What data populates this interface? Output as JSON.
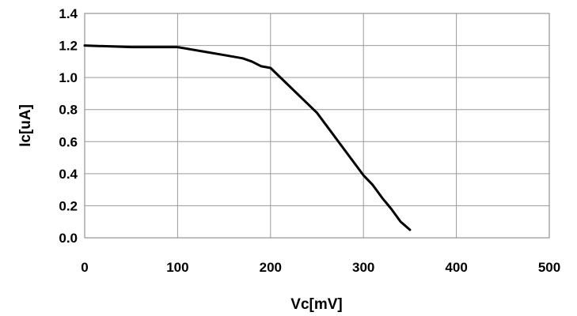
{
  "chart_data": {
    "type": "line",
    "title": "",
    "xlabel": "Vc[mV]",
    "ylabel": "Ic[uA]",
    "xlim": [
      0,
      500
    ],
    "ylim": [
      0,
      1.4
    ],
    "x_ticks": [
      "0",
      "100",
      "200",
      "300",
      "400",
      "500"
    ],
    "y_ticks": [
      "0.0",
      "0.2",
      "0.4",
      "0.6",
      "0.8",
      "1.0",
      "1.2",
      "1.4"
    ],
    "grid": true,
    "legend": "none",
    "series": [
      {
        "color": "#000000",
        "x": [
          0,
          50,
          100,
          150,
          170,
          180,
          190,
          200,
          250,
          300,
          310,
          320,
          330,
          340,
          350
        ],
        "y": [
          1.2,
          1.19,
          1.19,
          1.14,
          1.12,
          1.1,
          1.07,
          1.06,
          0.78,
          0.39,
          0.33,
          0.25,
          0.18,
          0.1,
          0.05
        ]
      }
    ]
  }
}
